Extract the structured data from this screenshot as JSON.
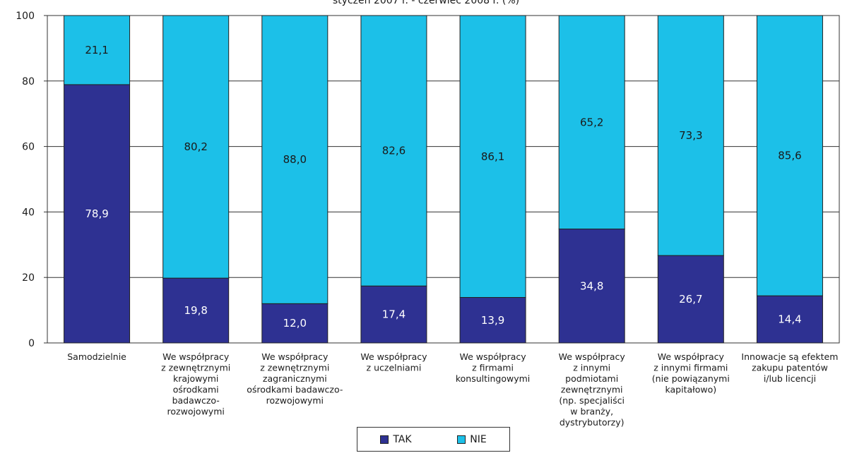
{
  "chart_data": {
    "type": "bar",
    "stacked": true,
    "subtitle": "styczeń 2007 r. - czerwiec 2008 r. (%)",
    "categories": [
      "Samodzielnie",
      "We współpracy\nz zewnętrznymi\nkrajowymi\nośrodkami\nbadawczo-\nrozwojowymi",
      "We współpracy\nz zewnętrznymi\nzagranicznymi\nośrodkami badawczo-\nrozwojowymi",
      "We współpracy\nz uczelniami",
      "We współpracy\nz firmami\nkonsultingowymi",
      "We współpracy\nz innymi\npodmiotami\nzewnętrznymi\n(np. specjaliści\nw branży,\ndystrybutorzy)",
      "We współpracy\nz innymi firmami\n(nie powiązanymi\nkapitałowo)",
      "Innowacje są efektem\nzakupu patentów\ni/lub licencji"
    ],
    "series": [
      {
        "name": "TAK",
        "color": "#2e3192",
        "values": [
          78.9,
          19.8,
          12.0,
          17.4,
          13.9,
          34.8,
          26.7,
          14.4
        ],
        "labels": [
          "78,9",
          "19,8",
          "12,0",
          "17,4",
          "13,9",
          "34,8",
          "26,7",
          "14,4"
        ]
      },
      {
        "name": "NIE",
        "color": "#1cc0e8",
        "values": [
          21.1,
          80.2,
          88.0,
          82.6,
          86.1,
          65.2,
          73.3,
          85.6
        ],
        "labels": [
          "21,1",
          "80,2",
          "88,0",
          "82,6",
          "86,1",
          "65,2",
          "73,3",
          "85,6"
        ]
      }
    ],
    "ylim": [
      0,
      100
    ],
    "yticks": [
      0,
      20,
      40,
      60,
      80,
      100
    ],
    "grid": true,
    "legend": "bottom-center"
  }
}
